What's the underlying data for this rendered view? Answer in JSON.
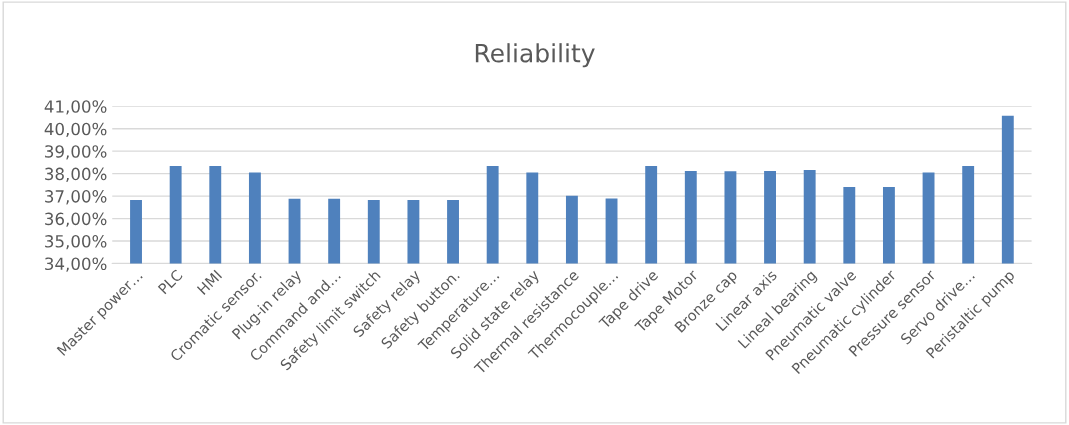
{
  "chart_data": {
    "type": "bar",
    "title": "Reliability",
    "categories": [
      "Master power…",
      "PLC",
      "HMI",
      "Cromatic sensor.",
      "Plug-in relay",
      "Command and…",
      "Safety limit switch",
      "Safety relay",
      "Safety button.",
      "Temperature…",
      "Solid state relay",
      "Thermal resistance",
      "Thermocouple…",
      "Tape drive",
      "Tape Motor",
      "Bronze cap",
      "Linear axis",
      "Lineal bearing",
      "Pneumatic valve",
      "Pneumatic cylinder",
      "Pressure sensor",
      "Servo drive…",
      "Peristaltic pump"
    ],
    "values": [
      36.83,
      38.34,
      38.34,
      38.05,
      36.88,
      36.88,
      36.83,
      36.83,
      36.83,
      38.34,
      38.05,
      37.02,
      36.89,
      38.34,
      38.12,
      38.11,
      38.12,
      38.16,
      37.41,
      37.41,
      38.05,
      38.34,
      40.58
    ],
    "color": "#4f81bd",
    "ylim": [
      34,
      41
    ],
    "yticks": [
      {
        "value": 34,
        "label": "34,00%"
      },
      {
        "value": 35,
        "label": "35,00%"
      },
      {
        "value": 36,
        "label": "36,00%"
      },
      {
        "value": 37,
        "label": "37,00%"
      },
      {
        "value": 38,
        "label": "38,00%"
      },
      {
        "value": 39,
        "label": "39,00%"
      },
      {
        "value": 40,
        "label": "40,00%"
      },
      {
        "value": 41,
        "label": "41,00%"
      }
    ],
    "grid": "y",
    "legend": false
  }
}
